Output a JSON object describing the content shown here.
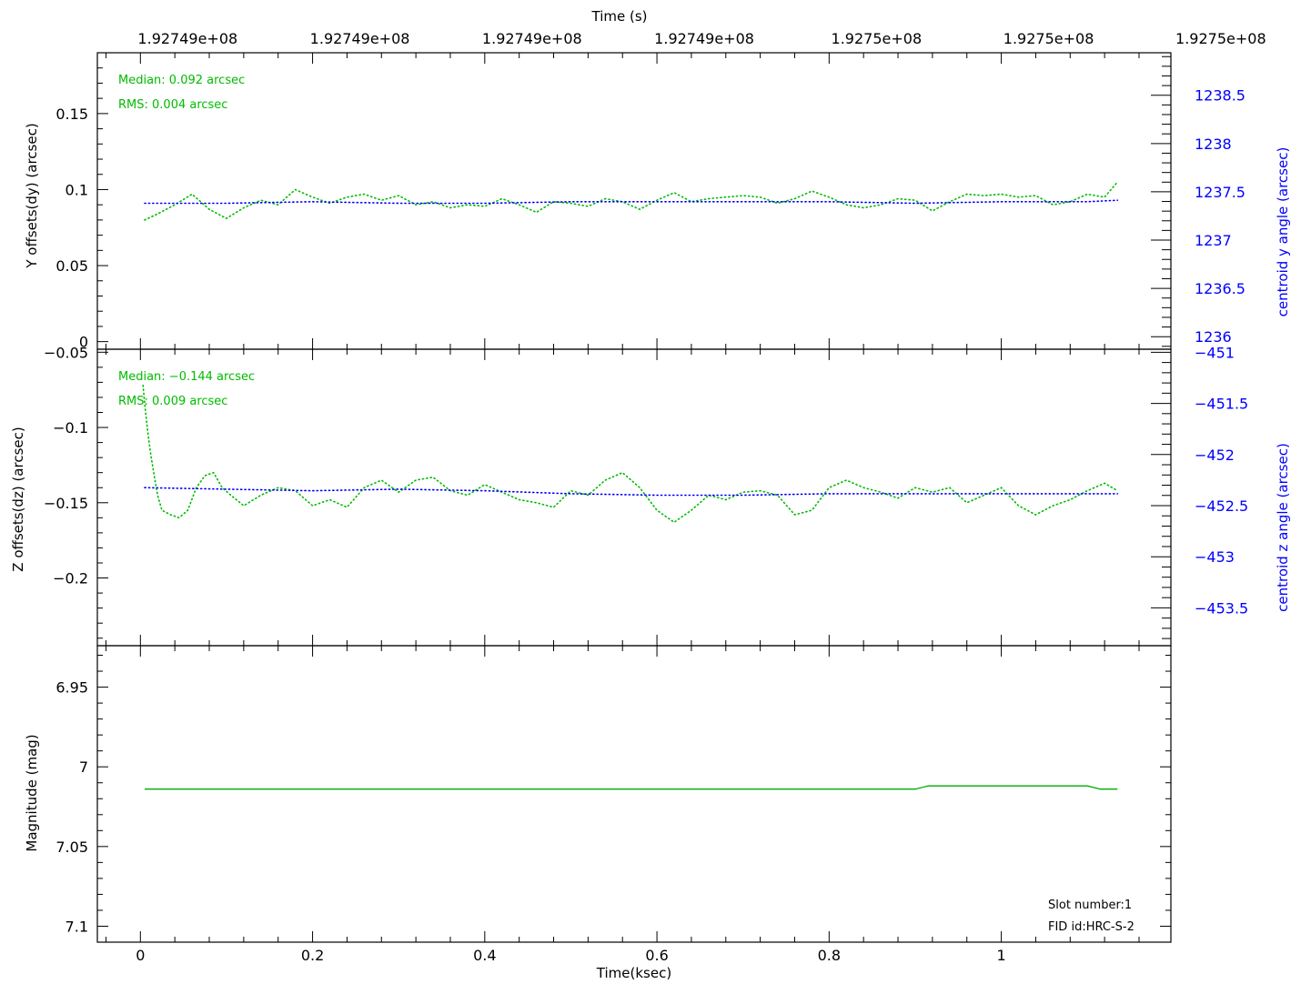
{
  "chart_data": [
    {
      "type": "scatter",
      "panel": "y_offsets",
      "top_axis_title": "Time (s)",
      "top_tick_labels": [
        "1.92749e+08",
        "1.92749e+08",
        "1.92749e+08",
        "1.92749e+08",
        "1.9275e+08",
        "1.9275e+08",
        "1.9275e+08"
      ],
      "ylabel": "Y offsets(dy) (arcsec)",
      "ylim": [
        -0.005,
        0.19
      ],
      "yticks": [
        0,
        0.05,
        0.1,
        0.15
      ],
      "ytick_labels": [
        "0",
        "0.05",
        "0.1",
        "0.15"
      ],
      "y2label": "centroid y angle (arcsec)",
      "y2lim": [
        1235.87,
        1238.94
      ],
      "y2ticks": [
        1236,
        1236.5,
        1237,
        1237.5,
        1238,
        1238.5
      ],
      "y2tick_labels": [
        "1236",
        "1236.5",
        "1237",
        "1237.5",
        "1238",
        "1238.5"
      ],
      "annotations": [
        "Median: 0.092 arcsec",
        "RMS: 0.004 arcsec"
      ],
      "series": [
        {
          "color": "#00bb00",
          "axis": "left",
          "x": [
            0.005,
            0.02,
            0.04,
            0.06,
            0.08,
            0.1,
            0.12,
            0.14,
            0.16,
            0.18,
            0.2,
            0.22,
            0.24,
            0.26,
            0.28,
            0.3,
            0.32,
            0.34,
            0.36,
            0.38,
            0.4,
            0.42,
            0.44,
            0.46,
            0.48,
            0.5,
            0.52,
            0.54,
            0.56,
            0.58,
            0.6,
            0.62,
            0.64,
            0.66,
            0.68,
            0.7,
            0.72,
            0.74,
            0.76,
            0.78,
            0.8,
            0.82,
            0.84,
            0.86,
            0.88,
            0.9,
            0.92,
            0.94,
            0.96,
            0.98,
            1.0,
            1.02,
            1.04,
            1.06,
            1.08,
            1.1,
            1.12,
            1.135
          ],
          "y": [
            0.08,
            0.084,
            0.09,
            0.097,
            0.087,
            0.081,
            0.088,
            0.093,
            0.09,
            0.1,
            0.095,
            0.091,
            0.095,
            0.097,
            0.093,
            0.096,
            0.09,
            0.092,
            0.088,
            0.09,
            0.089,
            0.094,
            0.09,
            0.085,
            0.092,
            0.091,
            0.089,
            0.094,
            0.092,
            0.087,
            0.093,
            0.098,
            0.092,
            0.094,
            0.095,
            0.096,
            0.095,
            0.091,
            0.094,
            0.099,
            0.095,
            0.09,
            0.088,
            0.09,
            0.094,
            0.093,
            0.086,
            0.092,
            0.097,
            0.096,
            0.097,
            0.095,
            0.096,
            0.09,
            0.092,
            0.097,
            0.095,
            0.105
          ]
        },
        {
          "color": "#0000ff",
          "axis": "left",
          "x": [
            0.005,
            0.1,
            0.2,
            0.3,
            0.4,
            0.5,
            0.6,
            0.7,
            0.8,
            0.9,
            1.0,
            1.1,
            1.135
          ],
          "y": [
            0.091,
            0.091,
            0.092,
            0.091,
            0.091,
            0.092,
            0.092,
            0.092,
            0.092,
            0.091,
            0.092,
            0.092,
            0.093
          ]
        }
      ]
    },
    {
      "type": "scatter",
      "panel": "z_offsets",
      "ylabel": "Z offsets(dz) (arcsec)",
      "ylim": [
        -0.245,
        -0.048
      ],
      "yticks": [
        -0.05,
        -0.1,
        -0.15,
        -0.2
      ],
      "ytick_labels": [
        "−0.05",
        "−0.1",
        "−0.15",
        "−0.2"
      ],
      "y2label": "centroid z angle (arcsec)",
      "y2lim": [
        -453.87,
        -450.97
      ],
      "y2ticks": [
        -451,
        -451.5,
        -452,
        -452.5,
        -453,
        -453.5
      ],
      "y2tick_labels": [
        "−451",
        "−451.5",
        "−452",
        "−452.5",
        "−453",
        "−453.5"
      ],
      "annotations": [
        "Median: −0.144 arcsec",
        "RMS: 0.009 arcsec"
      ],
      "series": [
        {
          "color": "#00bb00",
          "axis": "left",
          "x": [
            0.003,
            0.006,
            0.009,
            0.012,
            0.016,
            0.02,
            0.025,
            0.035,
            0.045,
            0.055,
            0.065,
            0.075,
            0.085,
            0.095,
            0.105,
            0.12,
            0.14,
            0.16,
            0.18,
            0.2,
            0.22,
            0.24,
            0.26,
            0.28,
            0.3,
            0.32,
            0.34,
            0.36,
            0.38,
            0.4,
            0.42,
            0.44,
            0.46,
            0.48,
            0.5,
            0.52,
            0.54,
            0.56,
            0.58,
            0.6,
            0.62,
            0.64,
            0.66,
            0.68,
            0.7,
            0.72,
            0.74,
            0.76,
            0.78,
            0.8,
            0.82,
            0.84,
            0.86,
            0.88,
            0.9,
            0.92,
            0.94,
            0.96,
            0.98,
            1.0,
            1.02,
            1.04,
            1.06,
            1.08,
            1.1,
            1.12,
            1.135
          ],
          "y": [
            -0.072,
            -0.09,
            -0.105,
            -0.118,
            -0.132,
            -0.145,
            -0.155,
            -0.158,
            -0.16,
            -0.155,
            -0.14,
            -0.132,
            -0.13,
            -0.14,
            -0.145,
            -0.152,
            -0.145,
            -0.14,
            -0.142,
            -0.152,
            -0.148,
            -0.153,
            -0.14,
            -0.135,
            -0.143,
            -0.135,
            -0.133,
            -0.142,
            -0.145,
            -0.138,
            -0.143,
            -0.148,
            -0.15,
            -0.153,
            -0.142,
            -0.145,
            -0.135,
            -0.13,
            -0.14,
            -0.155,
            -0.163,
            -0.155,
            -0.145,
            -0.148,
            -0.143,
            -0.142,
            -0.145,
            -0.158,
            -0.155,
            -0.14,
            -0.135,
            -0.14,
            -0.143,
            -0.147,
            -0.14,
            -0.143,
            -0.14,
            -0.15,
            -0.145,
            -0.14,
            -0.152,
            -0.158,
            -0.152,
            -0.148,
            -0.142,
            -0.137,
            -0.142
          ]
        },
        {
          "color": "#0000ff",
          "axis": "left",
          "x": [
            0.005,
            0.1,
            0.2,
            0.3,
            0.4,
            0.5,
            0.6,
            0.7,
            0.8,
            0.9,
            1.0,
            1.1,
            1.135
          ],
          "y": [
            -0.14,
            -0.141,
            -0.142,
            -0.141,
            -0.142,
            -0.144,
            -0.145,
            -0.145,
            -0.144,
            -0.144,
            -0.144,
            -0.144,
            -0.144
          ]
        }
      ]
    },
    {
      "type": "line",
      "panel": "magnitude",
      "xlabel": "Time(ksec)",
      "xlim": [
        -0.05,
        1.197
      ],
      "xticks": [
        0,
        0.2,
        0.4,
        0.6,
        0.8,
        1
      ],
      "xtick_labels": [
        "0",
        "0.2",
        "0.4",
        "0.6",
        "0.8",
        "1"
      ],
      "ylabel": "Magnitude (mag)",
      "ylim": [
        7.11,
        6.924
      ],
      "yticks": [
        6.95,
        7,
        7.05,
        7.1
      ],
      "ytick_labels": [
        "6.95",
        "7",
        "7.05",
        "7.1"
      ],
      "annotations": [
        "Slot number:1",
        "FID id:HRC-S-2"
      ],
      "series": [
        {
          "color": "#00aa00",
          "x": [
            0.005,
            0.9,
            0.915,
            1.1,
            1.115,
            1.135
          ],
          "y": [
            7.014,
            7.014,
            7.012,
            7.012,
            7.014,
            7.014
          ]
        }
      ]
    }
  ]
}
